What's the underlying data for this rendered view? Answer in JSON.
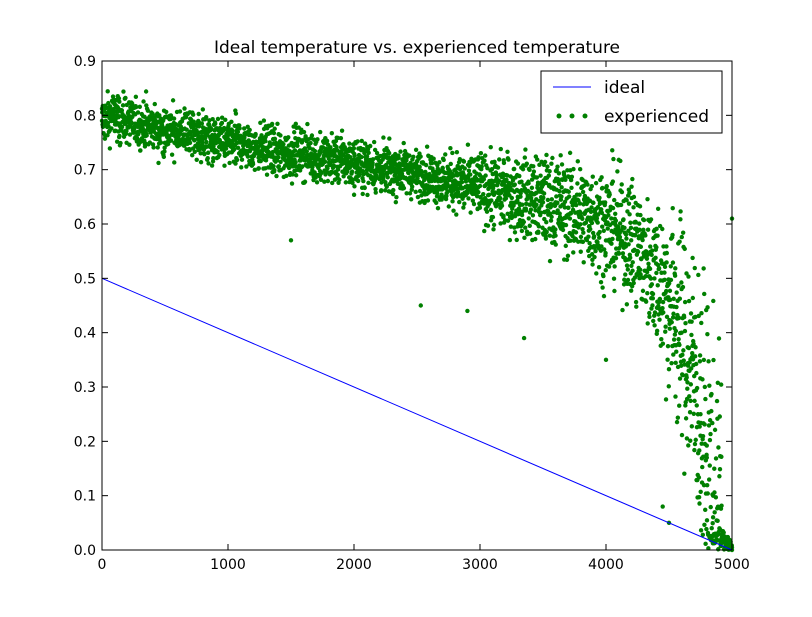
{
  "chart_data": {
    "type": "line+scatter",
    "title": "Ideal temperature vs. experienced temperature",
    "xlabel": "",
    "ylabel": "",
    "xlim": [
      0,
      5000
    ],
    "ylim": [
      0.0,
      0.9
    ],
    "x_ticks": [
      "0",
      "1000",
      "2000",
      "3000",
      "4000",
      "5000"
    ],
    "y_ticks": [
      "0.0",
      "0.1",
      "0.2",
      "0.3",
      "0.4",
      "0.5",
      "0.6",
      "0.7",
      "0.8",
      "0.9"
    ],
    "grid": false,
    "legend_position": "top-right",
    "series": [
      {
        "name": "ideal",
        "kind": "line",
        "color": "#0000ff",
        "x": [
          0,
          5000
        ],
        "y": [
          0.5,
          0.0
        ]
      },
      {
        "name": "experienced",
        "kind": "scatter",
        "color": "#008000",
        "sampled_points": [
          [
            0,
            0.79
          ],
          [
            100,
            0.8
          ],
          [
            200,
            0.79
          ],
          [
            300,
            0.78
          ],
          [
            400,
            0.78
          ],
          [
            500,
            0.77
          ],
          [
            600,
            0.77
          ],
          [
            700,
            0.77
          ],
          [
            800,
            0.76
          ],
          [
            900,
            0.75
          ],
          [
            1000,
            0.75
          ],
          [
            1100,
            0.75
          ],
          [
            1200,
            0.74
          ],
          [
            1300,
            0.74
          ],
          [
            1400,
            0.73
          ],
          [
            1500,
            0.73
          ],
          [
            1600,
            0.73
          ],
          [
            1700,
            0.72
          ],
          [
            1800,
            0.72
          ],
          [
            1900,
            0.72
          ],
          [
            2000,
            0.71
          ],
          [
            2100,
            0.71
          ],
          [
            2200,
            0.7
          ],
          [
            2300,
            0.7
          ],
          [
            2400,
            0.7
          ],
          [
            2500,
            0.69
          ],
          [
            2600,
            0.69
          ],
          [
            2700,
            0.68
          ],
          [
            2800,
            0.68
          ],
          [
            2900,
            0.67
          ],
          [
            3000,
            0.67
          ],
          [
            3100,
            0.66
          ],
          [
            3200,
            0.66
          ],
          [
            3300,
            0.65
          ],
          [
            3400,
            0.65
          ],
          [
            3500,
            0.64
          ],
          [
            3600,
            0.64
          ],
          [
            3700,
            0.63
          ],
          [
            3800,
            0.62
          ],
          [
            3900,
            0.61
          ],
          [
            4000,
            0.6
          ],
          [
            4100,
            0.59
          ],
          [
            4200,
            0.57
          ],
          [
            4300,
            0.54
          ],
          [
            4400,
            0.51
          ],
          [
            4500,
            0.46
          ],
          [
            4600,
            0.4
          ],
          [
            4700,
            0.32
          ],
          [
            4750,
            0.25
          ],
          [
            4800,
            0.17
          ],
          [
            4850,
            0.1
          ],
          [
            4900,
            0.04
          ],
          [
            4950,
            0.01
          ],
          [
            5000,
            0.0
          ]
        ],
        "outliers": [
          [
            1500,
            0.57
          ],
          [
            2530,
            0.45
          ],
          [
            2900,
            0.44
          ],
          [
            3350,
            0.39
          ],
          [
            4000,
            0.35
          ],
          [
            4450,
            0.08
          ],
          [
            4500,
            0.05
          ],
          [
            5000,
            0.61
          ]
        ]
      }
    ]
  }
}
